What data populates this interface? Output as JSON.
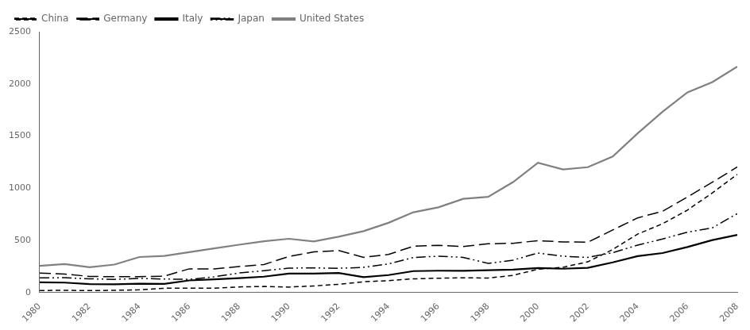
{
  "chart_data": {
    "type": "line",
    "x": [
      1980,
      1981,
      1982,
      1983,
      1984,
      1985,
      1986,
      1987,
      1988,
      1989,
      1990,
      1991,
      1992,
      1993,
      1994,
      1995,
      1996,
      1997,
      1998,
      1999,
      2000,
      2001,
      2002,
      2003,
      2004,
      2005,
      2006,
      2007,
      2008
    ],
    "series": [
      {
        "name": "China",
        "color": "#000000",
        "line_style": "densely_dashed",
        "values": [
          20,
          22,
          19,
          22,
          27,
          42,
          43,
          43,
          55,
          59,
          53,
          64,
          80,
          104,
          115,
          132,
          138,
          142,
          140,
          165,
          225,
          243,
          295,
          413,
          561,
          660,
          791,
          956,
          1133
        ]
      },
      {
        "name": "Germany",
        "color": "#000000",
        "line_style": "dashed",
        "values": [
          188,
          178,
          155,
          152,
          153,
          158,
          228,
          228,
          250,
          269,
          346,
          390,
          403,
          338,
          366,
          444,
          454,
          441,
          468,
          473,
          498,
          486,
          483,
          600,
          716,
          780,
          916,
          1058,
          1204
        ]
      },
      {
        "name": "Italy",
        "color": "#000000",
        "line_style": "solid",
        "values": [
          99,
          96,
          82,
          80,
          85,
          84,
          117,
          128,
          138,
          153,
          182,
          182,
          188,
          148,
          168,
          206,
          210,
          209,
          215,
          220,
          236,
          229,
          238,
          290,
          350,
          379,
          437,
          504,
          553
        ]
      },
      {
        "name": "Japan",
        "color": "#000000",
        "line_style": "dashdotdot",
        "values": [
          141,
          143,
          132,
          127,
          136,
          130,
          127,
          151,
          188,
          210,
          235,
          237,
          233,
          242,
          275,
          336,
          349,
          338,
          280,
          311,
          380,
          349,
          337,
          383,
          455,
          514,
          579,
          621,
          757
        ]
      },
      {
        "name": "United States",
        "color": "#808080",
        "line_style": "solid",
        "values": [
          257,
          273,
          243,
          269,
          341,
          352,
          387,
          424,
          459,
          492,
          516,
          491,
          536,
          589,
          669,
          770,
          817,
          899,
          918,
          1059,
          1244,
          1180,
          1202,
          1305,
          1526,
          1733,
          1919,
          2017,
          2166
        ]
      }
    ],
    "xlim": [
      1980,
      2008
    ],
    "xticks": [
      1980,
      1982,
      1984,
      1986,
      1988,
      1990,
      1992,
      1994,
      1996,
      1998,
      2000,
      2002,
      2004,
      2006,
      2008
    ],
    "ylim": [
      0,
      2500
    ],
    "yticks": [
      0,
      500,
      1000,
      1500,
      2000,
      2500
    ],
    "grid": false,
    "legend": "upper left"
  }
}
